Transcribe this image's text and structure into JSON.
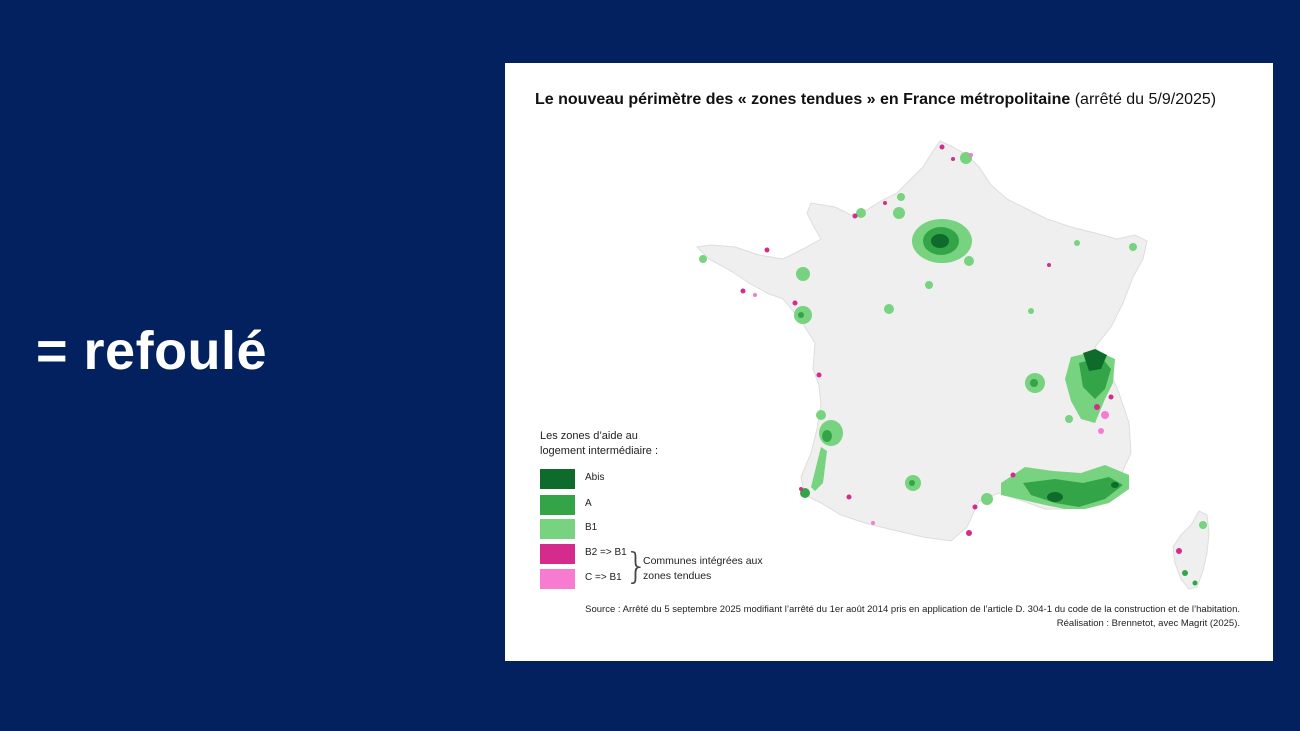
{
  "slide": {
    "heading": "= refoulé"
  },
  "map": {
    "title_bold": "Le nouveau périmètre des « zones tendues » en France métropolitaine",
    "title_rest": " (arrêté du 5/9/2025)",
    "legend": {
      "title": "Les zones d’aide au logement intermédiaire :",
      "items": [
        {
          "label": "Abis",
          "color": "#0e6b2c"
        },
        {
          "label": "A",
          "color": "#33a548"
        },
        {
          "label": "B1",
          "color": "#77d37f"
        },
        {
          "label": "B2 => B1",
          "color": "#d52b8d"
        },
        {
          "label": "C => B1",
          "color": "#f77bd0"
        }
      ],
      "group_label": "Communes intégrées aux zones tendues"
    },
    "source": "Source : Arrêté du 5 septembre 2025 modifiant l’arrêté du 1er août 2014 pris en application de l’article D. 304-1 du code de la construction et de l’habitation.",
    "credit": "Réalisation : Brennetot, avec Magrit (2025).",
    "base_color": "#efefef"
  }
}
